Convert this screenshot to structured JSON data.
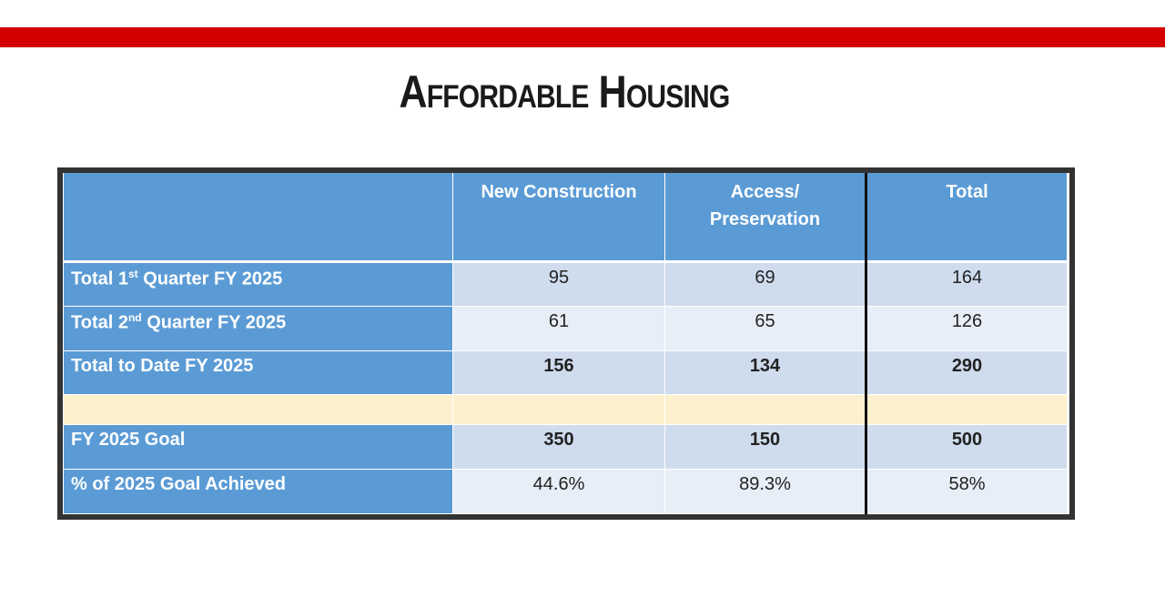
{
  "header": {
    "title": "Affordable Housing"
  },
  "table": {
    "columns": [
      "New Construction",
      "Access/ Preservation",
      "Total"
    ],
    "rows": [
      {
        "label": [
          "Total 1",
          "st",
          " Quarter FY 2025"
        ],
        "cells": [
          95,
          69,
          164
        ]
      },
      {
        "label": [
          "Total 2",
          "nd",
          " Quarter FY 2025"
        ],
        "cells": [
          61,
          65,
          126
        ]
      },
      {
        "label": [
          "Total to Date FY 2025"
        ],
        "cells": [
          156,
          134,
          290
        ]
      },
      {
        "label": [
          "FY 2025 Goal"
        ],
        "cells": [
          350,
          150,
          500
        ]
      },
      {
        "label": [
          "% of 2025 Goal Achieved"
        ],
        "cells": [
          "44.6%",
          "89.3%",
          "58%"
        ]
      }
    ]
  }
}
